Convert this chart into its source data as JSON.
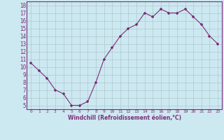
{
  "x": [
    0,
    1,
    2,
    3,
    4,
    5,
    6,
    7,
    8,
    9,
    10,
    11,
    12,
    13,
    14,
    15,
    16,
    17,
    18,
    19,
    20,
    21,
    22,
    23
  ],
  "y": [
    10.5,
    9.5,
    8.5,
    7.0,
    6.5,
    5.0,
    5.0,
    5.5,
    8.0,
    11.0,
    12.5,
    14.0,
    15.0,
    15.5,
    17.0,
    16.5,
    17.5,
    17.0,
    17.0,
    17.5,
    16.5,
    15.5,
    14.0,
    13.0
  ],
  "xlabel": "Windchill (Refroidissement éolien,°C)",
  "xlim": [
    -0.5,
    23.5
  ],
  "ylim": [
    4.5,
    18.5
  ],
  "yticks": [
    5,
    6,
    7,
    8,
    9,
    10,
    11,
    12,
    13,
    14,
    15,
    16,
    17,
    18
  ],
  "xticks": [
    0,
    1,
    2,
    3,
    4,
    5,
    6,
    7,
    8,
    9,
    10,
    11,
    12,
    13,
    14,
    15,
    16,
    17,
    18,
    19,
    20,
    21,
    22,
    23
  ],
  "line_color": "#7b2f7b",
  "marker": "+",
  "bg_color": "#cce8f0",
  "grid_color": "#b0c8d0",
  "label_color": "#7b2f7b",
  "tick_color": "#7b2f7b",
  "spine_color": "#7b2f7b"
}
